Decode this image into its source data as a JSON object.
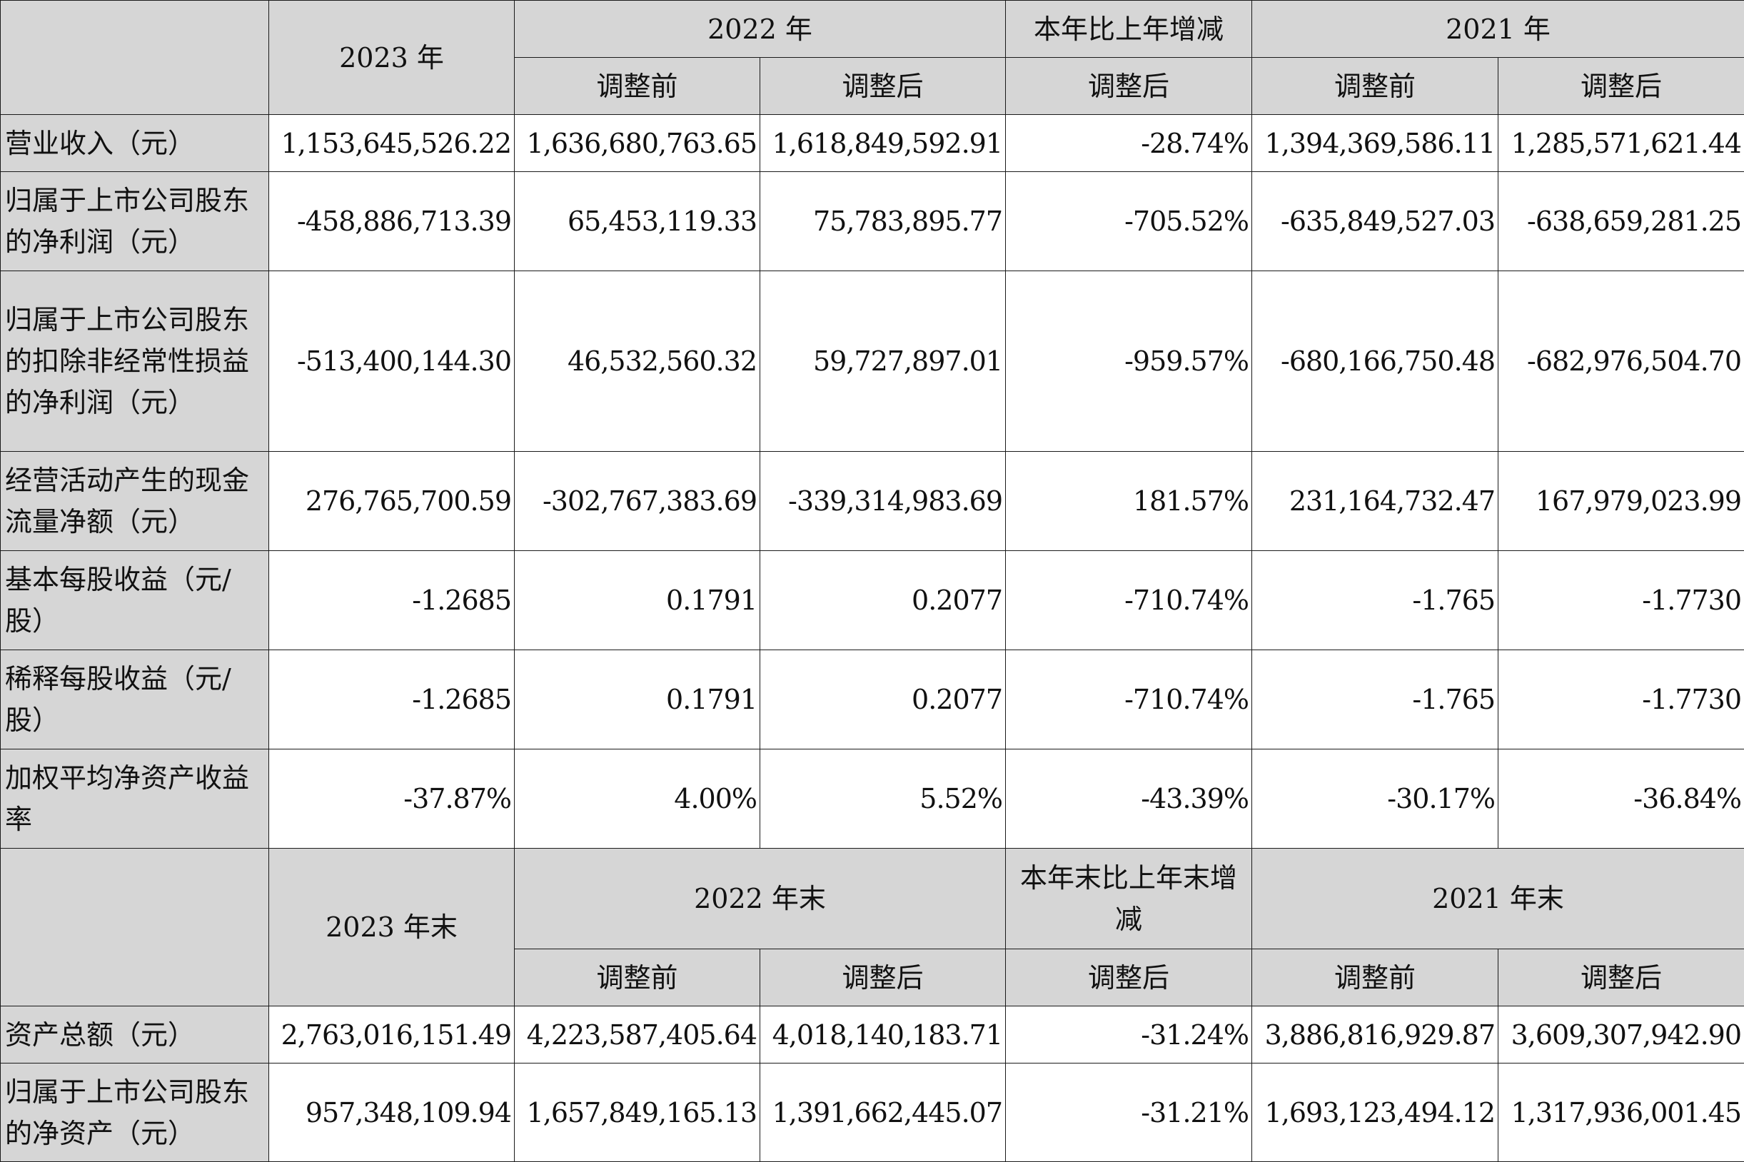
{
  "header1": {
    "y2023": "2023 年",
    "y2022": "2022 年",
    "change": "本年比上年增减",
    "y2021": "2021 年",
    "before": "调整前",
    "after": "调整后"
  },
  "rows1": [
    {
      "label": "营业收入（元）",
      "v": [
        "1,153,645,526.22",
        "1,636,680,763.65",
        "1,618,849,592.91",
        "-28.74%",
        "1,394,369,586.11",
        "1,285,571,621.44"
      ]
    },
    {
      "label": "归属于上市公司股东的净利润（元）",
      "v": [
        "-458,886,713.39",
        "65,453,119.33",
        "75,783,895.77",
        "-705.52%",
        "-635,849,527.03",
        "-638,659,281.25"
      ]
    },
    {
      "label": "归属于上市公司股东的扣除非经常性损益的净利润（元）",
      "v": [
        "-513,400,144.30",
        "46,532,560.32",
        "59,727,897.01",
        "-959.57%",
        "-680,166,750.48",
        "-682,976,504.70"
      ]
    },
    {
      "label": "经营活动产生的现金流量净额（元）",
      "v": [
        "276,765,700.59",
        "-302,767,383.69",
        "-339,314,983.69",
        "181.57%",
        "231,164,732.47",
        "167,979,023.99"
      ]
    },
    {
      "label": "基本每股收益（元/股）",
      "v": [
        "-1.2685",
        "0.1791",
        "0.2077",
        "-710.74%",
        "-1.765",
        "-1.7730"
      ]
    },
    {
      "label": "稀释每股收益（元/股）",
      "v": [
        "-1.2685",
        "0.1791",
        "0.2077",
        "-710.74%",
        "-1.765",
        "-1.7730"
      ]
    },
    {
      "label": "加权平均净资产收益率",
      "v": [
        "-37.87%",
        "4.00%",
        "5.52%",
        "-43.39%",
        "-30.17%",
        "-36.84%"
      ]
    }
  ],
  "header2": {
    "y2023": "2023 年末",
    "y2022": "2022 年末",
    "change": "本年末比上年末增减",
    "y2021": "2021 年末",
    "before": "调整前",
    "after": "调整后"
  },
  "rows2": [
    {
      "label": "资产总额（元）",
      "v": [
        "2,763,016,151.49",
        "4,223,587,405.64",
        "4,018,140,183.71",
        "-31.24%",
        "3,886,816,929.87",
        "3,609,307,942.90"
      ]
    },
    {
      "label": "归属于上市公司股东的净资产（元）",
      "v": [
        "957,348,109.94",
        "1,657,849,165.13",
        "1,391,662,445.07",
        "-31.21%",
        "1,693,123,494.12",
        "1,317,936,001.45"
      ]
    }
  ]
}
